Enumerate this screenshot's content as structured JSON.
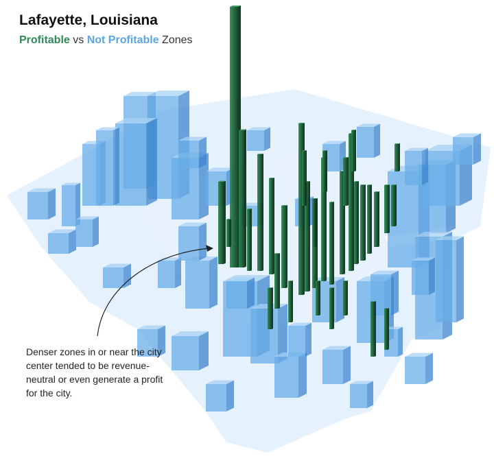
{
  "header": {
    "title": "Lafayette, Louisiana",
    "subtitle_profitable": "Profitable",
    "subtitle_vs": "vs",
    "subtitle_not_profitable": "Not Profitable",
    "subtitle_zones": "Zones"
  },
  "annotation": {
    "text": "Denser zones in or near the city center tended to be revenue-neutral or even generate a profit for the city."
  },
  "colors": {
    "profitable": "#1f6b3c",
    "not_profitable": "#5aa6e3",
    "profitable_text": "#2e8b57",
    "not_profitable_text": "#5aa6e3"
  }
}
